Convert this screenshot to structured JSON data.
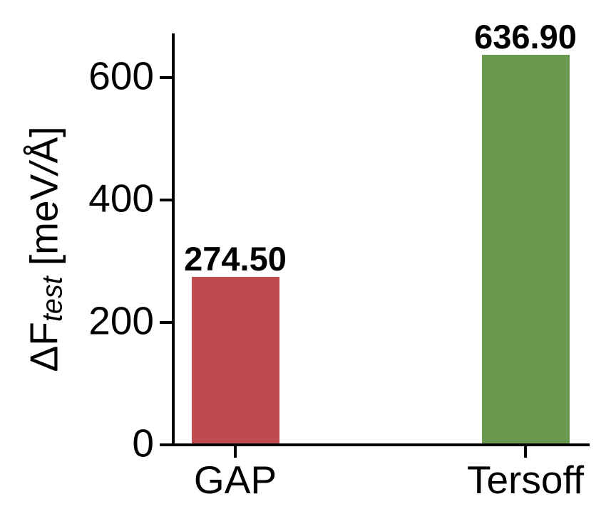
{
  "chart_data": {
    "type": "bar",
    "title": "",
    "categories": [
      "GAP",
      "Tersoff"
    ],
    "values": [
      274.5,
      636.9
    ],
    "value_labels": [
      "274.50",
      "636.90"
    ],
    "bar_colors": [
      "#c04b4f",
      "#6a9a4f"
    ],
    "ylabel": "ΔF_test [meV/Å]",
    "ylabel_parts": {
      "prefix": "ΔF",
      "subscript": "test",
      "unit_open": " [meV",
      "slash": "/",
      "unit_close": "Å]"
    },
    "xlabel": "",
    "yticks": [
      0,
      200,
      400,
      600
    ],
    "ytick_labels": [
      "0",
      "200",
      "400",
      "600"
    ],
    "ylim": [
      0,
      672
    ],
    "grid": false,
    "legend": null,
    "axis_color": "#000000",
    "text_color": "#000000",
    "background_color": "#ffffff"
  }
}
